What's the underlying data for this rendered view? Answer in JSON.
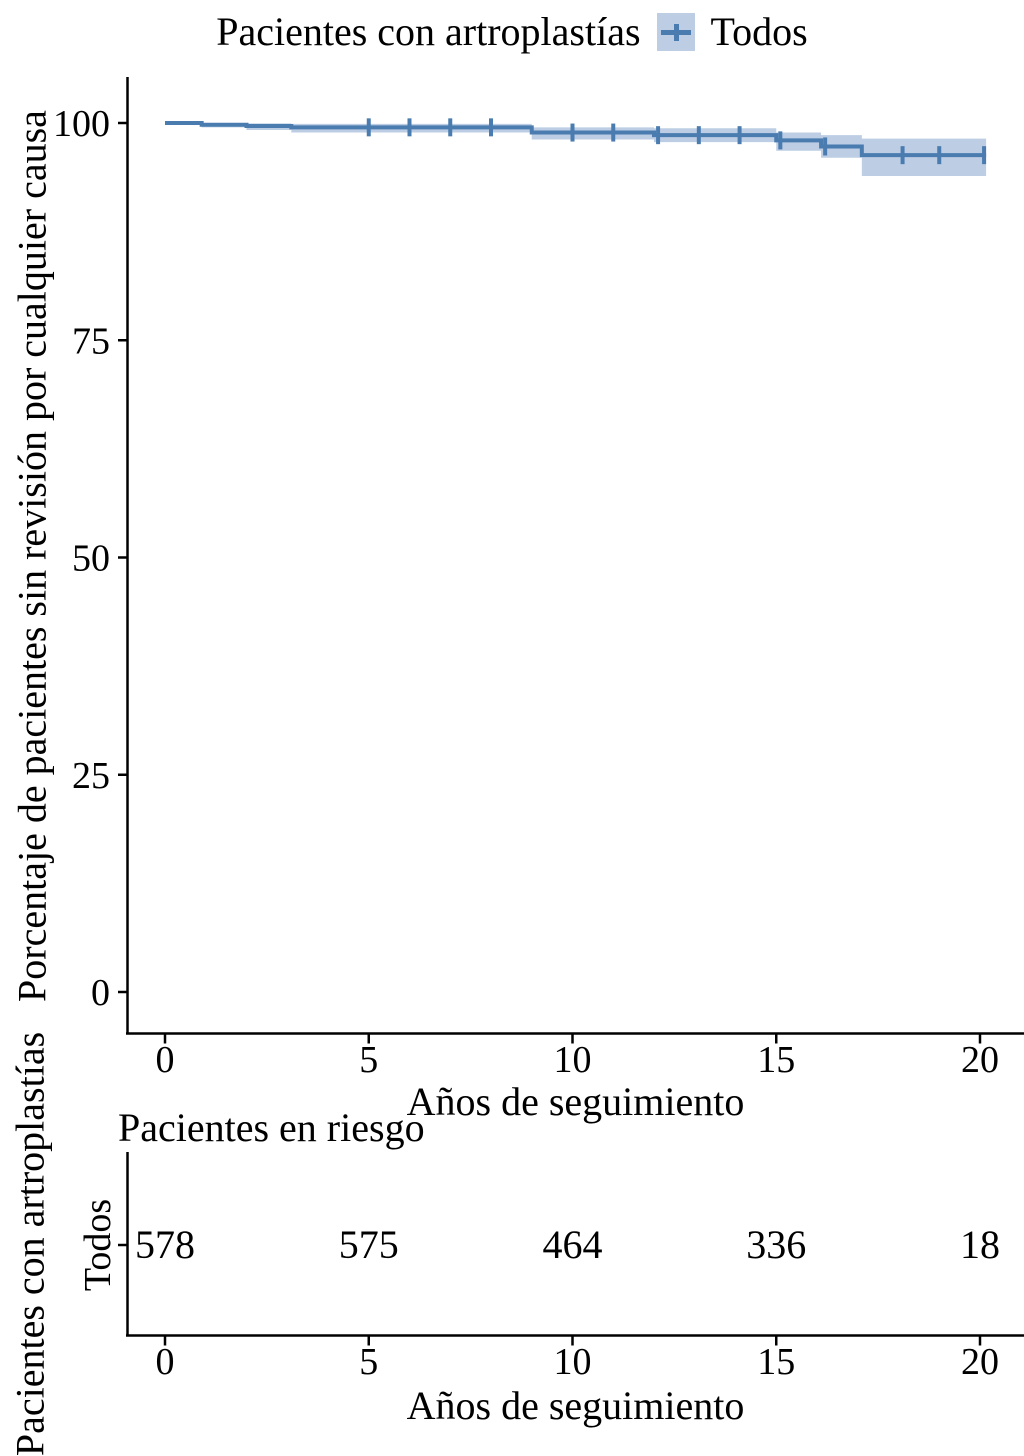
{
  "title": "Pacientes con artroplastías",
  "legend": {
    "label": "Todos",
    "position": "top"
  },
  "colors": {
    "line": "#4a7caf",
    "band": "#bccde4",
    "axis": "#000000",
    "text": "#000000"
  },
  "main_plot": {
    "ylabel": "Porcentaje de pacientes sin revisión por cualquier causa",
    "xlabel": "Años de seguimiento"
  },
  "risk_table": {
    "title": "Pacientes en riesgo",
    "strip_label": "Pacientes con artroplastías",
    "row_label": "Todos",
    "xlabel": "Años de seguimiento"
  },
  "chart_data": {
    "type": "line",
    "subtype": "kaplan-meier-survival",
    "title": "Pacientes con artroplastías",
    "xlabel": "Años de seguimiento",
    "ylabel": "Porcentaje de pacientes sin revisión por cualquier causa",
    "xlim": [
      0,
      20
    ],
    "ylim": [
      0,
      100
    ],
    "x_ticks": [
      0,
      5,
      10,
      15,
      20
    ],
    "y_ticks": [
      0,
      25,
      50,
      75,
      100
    ],
    "grid": false,
    "legend_position": "top",
    "series": [
      {
        "name": "Todos",
        "steps": [
          {
            "time": 0,
            "survival": 100,
            "ci_upper": 100,
            "ci_lower": 100
          },
          {
            "time": 0.9,
            "survival": 99.8,
            "ci_upper": 100,
            "ci_lower": 99.5
          },
          {
            "time": 2.0,
            "survival": 99.65,
            "ci_upper": 99.95,
            "ci_lower": 99.2
          },
          {
            "time": 3.1,
            "survival": 99.5,
            "ci_upper": 99.9,
            "ci_lower": 98.9
          },
          {
            "time": 9.0,
            "survival": 98.9,
            "ci_upper": 99.5,
            "ci_lower": 98.1
          },
          {
            "time": 12.0,
            "survival": 98.6,
            "ci_upper": 99.4,
            "ci_lower": 97.8
          },
          {
            "time": 15.0,
            "survival": 98.0,
            "ci_upper": 98.9,
            "ci_lower": 96.8
          },
          {
            "time": 16.1,
            "survival": 97.3,
            "ci_upper": 98.6,
            "ci_lower": 96.0
          },
          {
            "time": 17.1,
            "survival": 96.3,
            "ci_upper": 98.2,
            "ci_lower": 93.9
          },
          {
            "time": 20.15,
            "survival": 96.3,
            "ci_upper": 98.2,
            "ci_lower": 93.9
          }
        ],
        "censor_times": [
          5,
          6,
          7,
          8,
          10,
          11,
          12.1,
          13.1,
          14.1,
          15.1,
          16.2,
          18.1,
          19,
          20.1
        ]
      }
    ],
    "risk_table": {
      "title": "Pacientes en riesgo",
      "group_axis_label": "Pacientes con artroplastías",
      "rows": [
        {
          "label": "Todos",
          "times": [
            0,
            5,
            10,
            15,
            20
          ],
          "counts": [
            578,
            575,
            464,
            336,
            18
          ]
        }
      ]
    }
  }
}
